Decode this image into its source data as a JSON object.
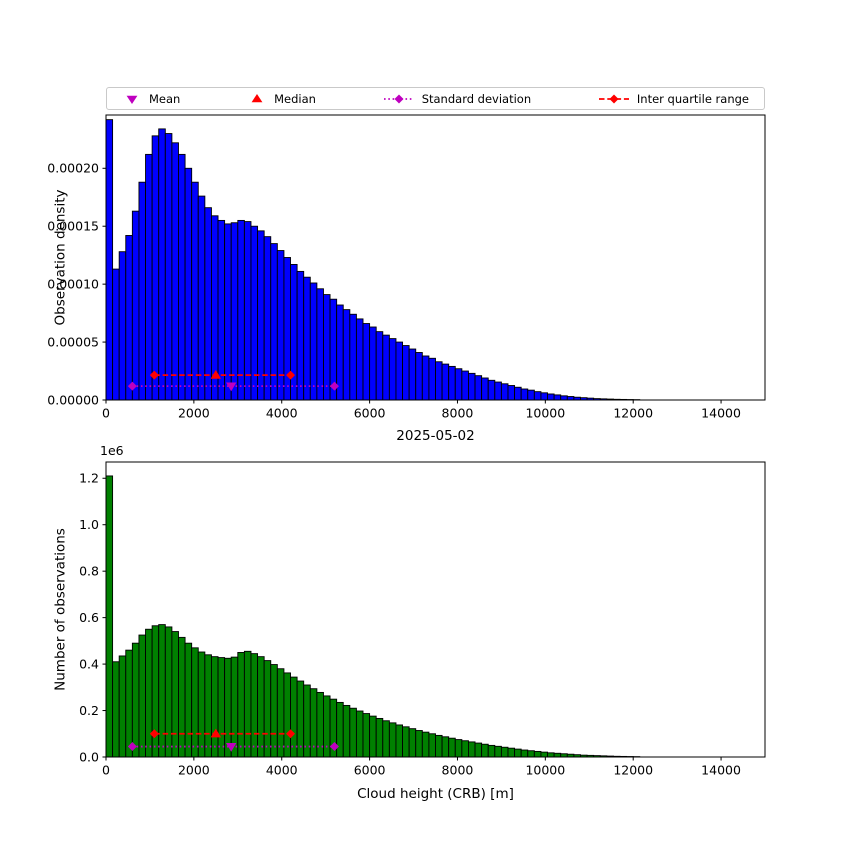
{
  "figure": {
    "background": "#ffffff"
  },
  "legend": {
    "items": [
      {
        "label": "Mean",
        "marker": "triangle-down",
        "color": "#bf00bf",
        "line": "none"
      },
      {
        "label": "Median",
        "marker": "triangle-up",
        "color": "#ff0000",
        "line": "none"
      },
      {
        "label": "Standard deviation",
        "marker": "diamond",
        "color": "#bf00bf",
        "line": "dotted"
      },
      {
        "label": "Inter quartile range",
        "marker": "diamond",
        "color": "#ff0000",
        "line": "dashed"
      }
    ]
  },
  "chart_data": [
    {
      "type": "bar",
      "panel": "top",
      "ylabel": "Observation density",
      "bar_color": "#0000ff",
      "bar_edge_color": "#000000",
      "bin_start": 0,
      "bin_width": 150,
      "xlim": [
        0,
        15000
      ],
      "ylim": [
        0,
        0.000246
      ],
      "xticks": [
        0,
        2000,
        4000,
        6000,
        8000,
        10000,
        12000,
        14000
      ],
      "yticks": [
        0,
        5e-05,
        0.0001,
        0.00015,
        0.0002
      ],
      "ytick_labels": [
        "0.00000",
        "0.00005",
        "0.00010",
        "0.00015",
        "0.00020"
      ],
      "values": [
        0.000242,
        0.000113,
        0.000128,
        0.000142,
        0.000163,
        0.000188,
        0.000212,
        0.000228,
        0.000234,
        0.00023,
        0.000222,
        0.000212,
        0.0002,
        0.000188,
        0.000176,
        0.000166,
        0.000159,
        0.000155,
        0.000152,
        0.000153,
        0.000155,
        0.000154,
        0.00015,
        0.000146,
        0.000141,
        0.000135,
        0.000129,
        0.000123,
        0.000117,
        0.000111,
        0.000106,
        0.000101,
        9.6e-05,
        9.1e-05,
        8.7e-05,
        8.2e-05,
        7.8e-05,
        7.4e-05,
        7e-05,
        6.6e-05,
        6.3e-05,
        5.9e-05,
        5.6e-05,
        5.3e-05,
        5e-05,
        4.7e-05,
        4.4e-05,
        4.1e-05,
        3.8e-05,
        3.6e-05,
        3.3e-05,
        3.1e-05,
        2.9e-05,
        2.7e-05,
        2.5e-05,
        2.3e-05,
        2.1e-05,
        1.9e-05,
        1.7e-05,
        1.55e-05,
        1.4e-05,
        1.25e-05,
        1.1e-05,
        9.5e-06,
        8.5e-06,
        7.2e-06,
        6.2e-06,
        5.2e-06,
        4.4e-06,
        3.6e-06,
        3e-06,
        2.4e-06,
        2e-06,
        1.6e-06,
        1.2e-06,
        1e-06,
        8e-07,
        6e-07,
        5e-07,
        4e-07,
        3e-07
      ],
      "annotations": {
        "mean_m": 2850,
        "median_m": 2500,
        "std_range_m": [
          600,
          5200
        ],
        "iqr_range_m": [
          1100,
          4200
        ],
        "std_line_y": 1.2e-05,
        "iqr_line_y": 2.15e-05
      }
    },
    {
      "type": "bar",
      "panel": "bottom",
      "title": "2025-05-02",
      "xlabel": "Cloud height (CRB) [m]",
      "ylabel": "Number of observations",
      "y_offset_label": "1e6",
      "values_unit": "1e6",
      "bar_color": "#008000",
      "bar_edge_color": "#000000",
      "bin_start": 0,
      "bin_width": 150,
      "xlim": [
        0,
        15000
      ],
      "ylim": [
        0,
        1.27
      ],
      "xticks": [
        0,
        2000,
        4000,
        6000,
        8000,
        10000,
        12000,
        14000
      ],
      "yticks": [
        0,
        0.2,
        0.4,
        0.6,
        0.8,
        1.0,
        1.2
      ],
      "ytick_labels": [
        "0.0",
        "0.2",
        "0.4",
        "0.6",
        "0.8",
        "1.0",
        "1.2"
      ],
      "values": [
        1.21,
        0.41,
        0.435,
        0.46,
        0.49,
        0.525,
        0.55,
        0.565,
        0.57,
        0.56,
        0.54,
        0.515,
        0.49,
        0.47,
        0.452,
        0.44,
        0.432,
        0.428,
        0.425,
        0.43,
        0.45,
        0.455,
        0.445,
        0.432,
        0.415,
        0.398,
        0.38,
        0.362,
        0.344,
        0.327,
        0.31,
        0.294,
        0.278,
        0.263,
        0.249,
        0.235,
        0.222,
        0.21,
        0.198,
        0.187,
        0.176,
        0.166,
        0.156,
        0.147,
        0.138,
        0.13,
        0.122,
        0.114,
        0.107,
        0.1,
        0.093,
        0.087,
        0.081,
        0.075,
        0.07,
        0.065,
        0.06,
        0.055,
        0.05,
        0.046,
        0.042,
        0.038,
        0.034,
        0.03,
        0.027,
        0.024,
        0.021,
        0.018,
        0.016,
        0.014,
        0.012,
        0.01,
        0.008,
        0.007,
        0.006,
        0.005,
        0.004,
        0.003,
        0.0025,
        0.002,
        0.0015
      ],
      "annotations": {
        "mean_m": 2850,
        "median_m": 2500,
        "std_range_m": [
          600,
          5200
        ],
        "iqr_range_m": [
          1100,
          4200
        ],
        "std_line_y": 0.045,
        "iqr_line_y": 0.1
      }
    }
  ]
}
